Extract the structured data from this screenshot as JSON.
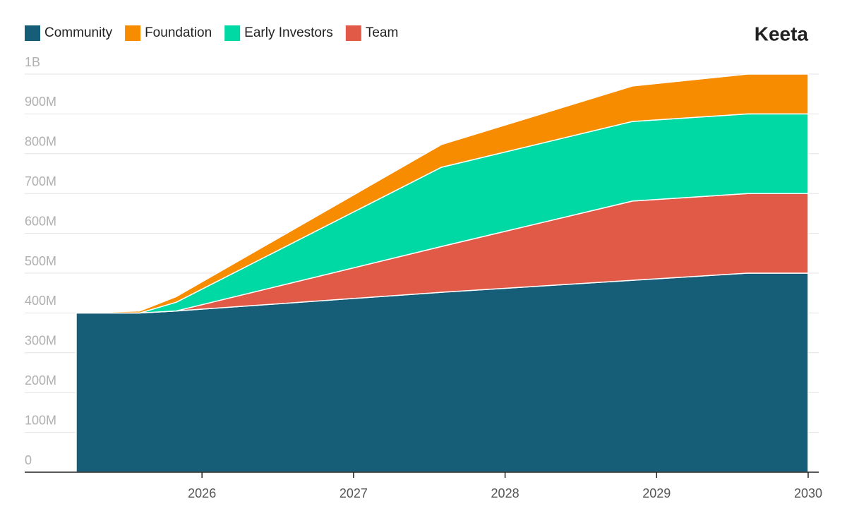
{
  "brand": "Keeta",
  "chart_data": {
    "type": "stacked-area",
    "x": [
      2025.17,
      2025.59,
      2025.83,
      2027.58,
      2028.84,
      2029.6,
      2030
    ],
    "series": [
      {
        "name": "Community",
        "color": "#165e77",
        "values": [
          400000000,
          400000000,
          405000000,
          452000000,
          482000000,
          500000000,
          500000000
        ]
      },
      {
        "name": "Team",
        "color": "#e05a47",
        "values": [
          0,
          0,
          0,
          115000000,
          199000000,
          200000000,
          200000000
        ]
      },
      {
        "name": "Early Investors",
        "color": "#00d9a3",
        "values": [
          0,
          0,
          22000000,
          199000000,
          200000000,
          200000000,
          200000000
        ]
      },
      {
        "name": "Foundation",
        "color": "#f78c00",
        "values": [
          0,
          5000000,
          14000000,
          57000000,
          89000000,
          100000000,
          100000000
        ]
      }
    ],
    "legend_order": [
      "Community",
      "Foundation",
      "Early Investors",
      "Team"
    ],
    "xlim": [
      2024.83,
      2030.07
    ],
    "xticks": [
      2026,
      2027,
      2028,
      2029,
      2030
    ],
    "ylim": [
      0,
      1000000000
    ],
    "yticks": [
      0,
      {
        "value": 100000000,
        "label": "100M"
      },
      {
        "value": 200000000,
        "label": "200M"
      },
      {
        "value": 300000000,
        "label": "300M"
      },
      {
        "value": 400000000,
        "label": "400M"
      },
      {
        "value": 500000000,
        "label": "500M"
      },
      {
        "value": 600000000,
        "label": "600M"
      },
      {
        "value": 700000000,
        "label": "700M"
      },
      {
        "value": 800000000,
        "label": "800M"
      },
      {
        "value": 900000000,
        "label": "900M"
      },
      {
        "value": 1000000000,
        "label": "1B"
      }
    ],
    "grid": true
  }
}
